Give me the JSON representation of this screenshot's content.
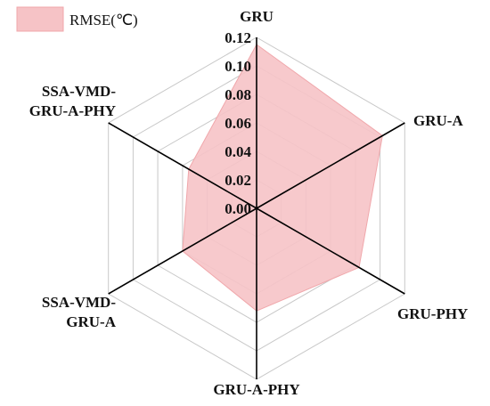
{
  "chart_data": {
    "type": "radar",
    "axes": [
      "GRU",
      "GRU-A",
      "GRU-PHY",
      "GRU-A-PHY",
      "SSA-VMD-GRU-A",
      "SSA-VMD-GRU-A-PHY"
    ],
    "axis_labels": [
      [
        "GRU"
      ],
      [
        "GRU-A"
      ],
      [
        "GRU-PHY"
      ],
      [
        "GRU-A-PHY"
      ],
      [
        "SSA-VMD-",
        "GRU-A"
      ],
      [
        "SSA-VMD-",
        "GRU-A-PHY"
      ]
    ],
    "series": [
      {
        "name": "RMSE(℃)",
        "values": [
          0.115,
          0.102,
          0.083,
          0.072,
          0.06,
          0.055
        ]
      }
    ],
    "rlim": [
      0,
      0.12
    ],
    "ticks": [
      0.0,
      0.02,
      0.04,
      0.06,
      0.08,
      0.1,
      0.12
    ],
    "tick_labels": [
      "0.00",
      "0.02",
      "0.04",
      "0.06",
      "0.08",
      "0.10",
      "0.12"
    ],
    "grid": true,
    "legend": "top-left",
    "colors": {
      "fill": "#f6c3c6",
      "edge": "#f0a7ab",
      "grid": "#c8c8c8",
      "axis": "#000000"
    }
  }
}
